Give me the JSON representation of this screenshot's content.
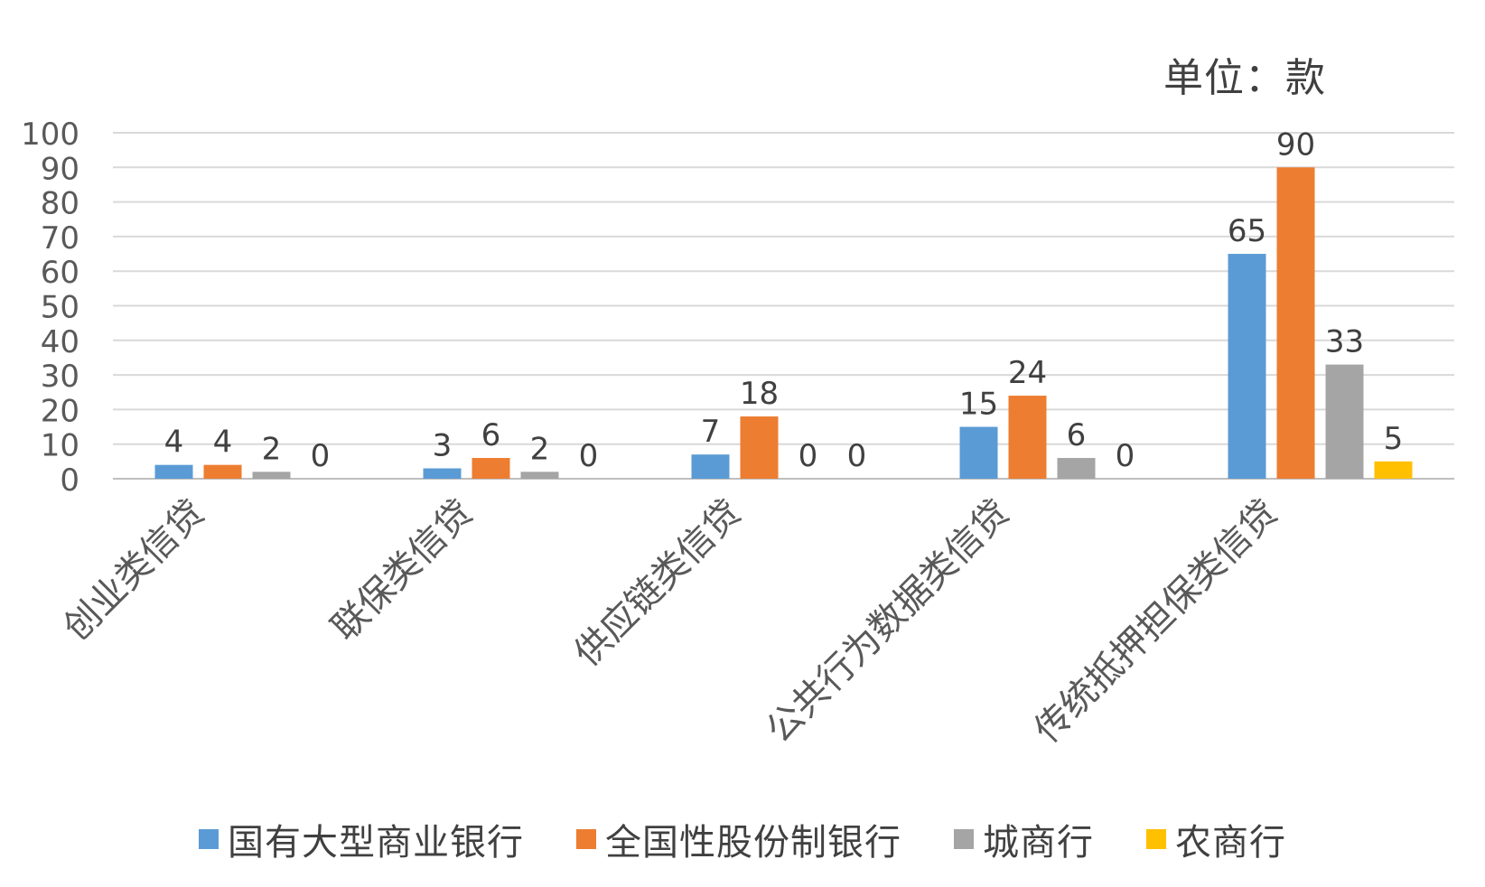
{
  "chart_data": {
    "type": "bar",
    "title": "",
    "unit_note": "单位：款",
    "xlabel": "",
    "ylabel": "",
    "categories": [
      "创业类信贷",
      "联保类信贷",
      "供应链类信贷",
      "公共行为数据类信贷",
      "传统抵押担保类信贷"
    ],
    "series": [
      {
        "name": "国有大型商业银行",
        "color": "#5b9bd5",
        "values": [
          4,
          3,
          7,
          15,
          65
        ]
      },
      {
        "name": "全国性股份制银行",
        "color": "#ed7d31",
        "values": [
          4,
          6,
          18,
          24,
          90
        ]
      },
      {
        "name": "城商行",
        "color": "#a5a5a5",
        "values": [
          2,
          2,
          0,
          6,
          33
        ]
      },
      {
        "name": "农商行",
        "color": "#ffc000",
        "values": [
          0,
          0,
          0,
          0,
          5
        ]
      }
    ],
    "ylim": [
      0,
      100
    ],
    "yticks": [
      0,
      10,
      20,
      30,
      40,
      50,
      60,
      70,
      80,
      90,
      100
    ],
    "grid": true,
    "legend_position": "bottom",
    "data_labels": true
  }
}
